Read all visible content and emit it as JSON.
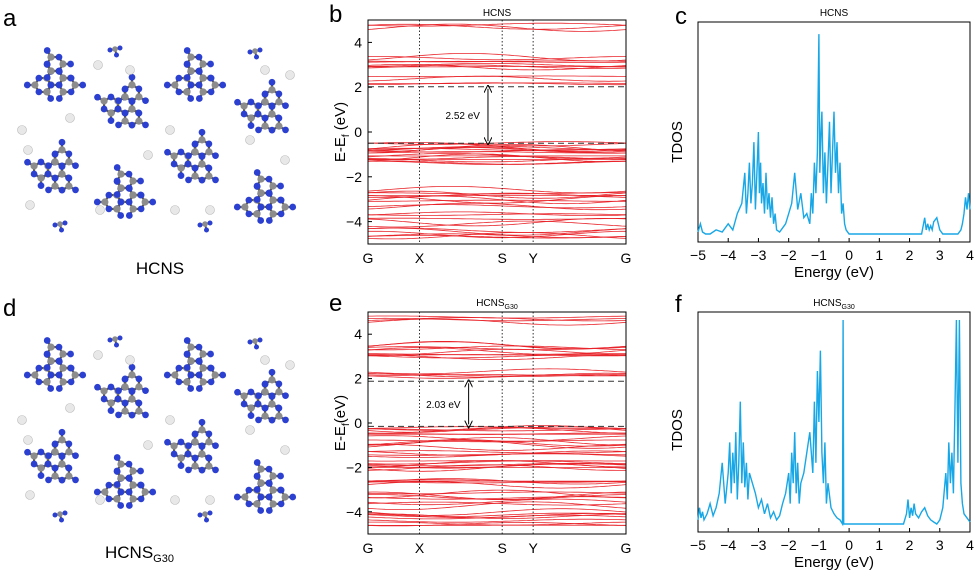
{
  "panels": {
    "a": {
      "letter": "a",
      "caption": "HCNS"
    },
    "b": {
      "letter": "b"
    },
    "c": {
      "letter": "c"
    },
    "d": {
      "letter": "d",
      "caption_main": "HCNS",
      "caption_sub": "G30"
    },
    "e": {
      "letter": "e"
    },
    "f": {
      "letter": "f"
    }
  },
  "colors": {
    "band": "#e8252b",
    "dos": "#18a7e6",
    "carbon": "#8c8c8c",
    "nitrogen": "#2b3fd1",
    "hydrogen": "#e8e8e8"
  },
  "chart_data": [
    {
      "id": "b",
      "type": "line",
      "title": "HCNS",
      "ylabel_main": "E-E",
      "ylabel_sub": "f",
      "ylabel_unit": " (eV)",
      "kpoints": [
        "G",
        "X",
        "S",
        "Y",
        "G"
      ],
      "kpoint_positions": [
        0,
        1,
        2.6,
        3.2,
        5.0
      ],
      "ylim": [
        -5,
        5
      ],
      "yticks": [
        -4,
        -2,
        0,
        2,
        4
      ],
      "vbm": -0.5,
      "cbm": 2.02,
      "gap_label": "2.52 eV",
      "band_groups": [
        {
          "center": -4.15,
          "spread": 0.6,
          "count": 10
        },
        {
          "center": -3.2,
          "spread": 0.55,
          "count": 8
        },
        {
          "center": -2.6,
          "spread": 0.3,
          "count": 3
        },
        {
          "center": -1.05,
          "spread": 0.45,
          "count": 14
        },
        {
          "center": -0.6,
          "spread": 0.12,
          "count": 4
        },
        {
          "center": 2.35,
          "spread": 0.25,
          "count": 4
        },
        {
          "center": 3.2,
          "spread": 0.35,
          "count": 8
        },
        {
          "center": 4.75,
          "spread": 0.15,
          "count": 3
        }
      ]
    },
    {
      "id": "c",
      "type": "line",
      "title": "HCNS",
      "xlabel": "Energy (eV)",
      "ylabel": "TDOS",
      "xlim": [
        -5,
        4
      ],
      "xticks": [
        -5,
        -4,
        -3,
        -2,
        -1,
        0,
        1,
        2,
        3,
        4
      ],
      "ylim": [
        0,
        1
      ],
      "x": [
        -5.0,
        -4.92,
        -4.85,
        -4.75,
        -4.6,
        -4.4,
        -4.2,
        -4.0,
        -3.85,
        -3.7,
        -3.55,
        -3.45,
        -3.4,
        -3.35,
        -3.3,
        -3.25,
        -3.2,
        -3.15,
        -3.1,
        -3.05,
        -3.0,
        -2.97,
        -2.93,
        -2.9,
        -2.85,
        -2.8,
        -2.75,
        -2.7,
        -2.65,
        -2.6,
        -2.55,
        -2.5,
        -2.45,
        -2.4,
        -2.3,
        -2.2,
        -2.1,
        -2.0,
        -1.9,
        -1.8,
        -1.7,
        -1.6,
        -1.5,
        -1.4,
        -1.3,
        -1.25,
        -1.2,
        -1.15,
        -1.1,
        -1.05,
        -1.0,
        -0.97,
        -0.93,
        -0.9,
        -0.85,
        -0.8,
        -0.75,
        -0.7,
        -0.65,
        -0.6,
        -0.55,
        -0.5,
        -0.45,
        -0.4,
        -0.35,
        -0.3,
        -0.25,
        -0.2,
        -0.15,
        -0.1,
        0.0,
        1.0,
        2.0,
        2.4,
        2.5,
        2.55,
        2.6,
        2.65,
        2.7,
        2.75,
        2.8,
        2.9,
        3.0,
        3.1,
        3.2,
        3.3,
        3.4,
        3.5,
        3.6,
        3.7,
        3.75,
        3.8,
        3.85,
        3.9,
        3.95,
        4.0
      ],
      "y": [
        0.01,
        0.05,
        0.01,
        0.0,
        0.0,
        0.02,
        0.01,
        0.05,
        0.02,
        0.1,
        0.15,
        0.3,
        0.1,
        0.2,
        0.35,
        0.15,
        0.25,
        0.45,
        0.12,
        0.3,
        0.5,
        0.2,
        0.35,
        0.15,
        0.25,
        0.1,
        0.3,
        0.12,
        0.2,
        0.08,
        0.18,
        0.05,
        0.1,
        0.02,
        0.01,
        0.03,
        0.05,
        0.1,
        0.15,
        0.3,
        0.12,
        0.2,
        0.08,
        0.1,
        0.05,
        0.2,
        0.1,
        0.35,
        0.2,
        0.4,
        0.98,
        0.3,
        0.5,
        0.6,
        0.2,
        0.4,
        0.15,
        0.35,
        0.55,
        0.2,
        0.4,
        0.6,
        0.3,
        0.45,
        0.2,
        0.35,
        0.1,
        0.15,
        0.05,
        0.02,
        0.0,
        0.0,
        0.0,
        0.0,
        0.08,
        0.02,
        0.05,
        0.02,
        0.04,
        0.02,
        0.06,
        0.08,
        0.02,
        0.0,
        0.0,
        0.0,
        0.0,
        0.0,
        0.0,
        0.02,
        0.05,
        0.1,
        0.18,
        0.12,
        0.2,
        0.12
      ]
    },
    {
      "id": "e",
      "type": "line",
      "title_main": "HCNS",
      "title_sub": "G30",
      "ylabel_main": "E-E",
      "ylabel_sub": "f",
      "ylabel_unit": "(eV)",
      "kpoints": [
        "G",
        "X",
        "S",
        "Y",
        "G"
      ],
      "kpoint_positions": [
        0,
        1,
        2.6,
        3.2,
        5.0
      ],
      "ylim": [
        -5,
        5
      ],
      "yticks": [
        -4,
        -2,
        0,
        2,
        4
      ],
      "vbm": -0.15,
      "cbm": 1.88,
      "gap_label": "2.03 eV",
      "band_groups": [
        {
          "center": -4.1,
          "spread": 0.6,
          "count": 12
        },
        {
          "center": -3.1,
          "spread": 0.5,
          "count": 10
        },
        {
          "center": -1.6,
          "spread": 0.45,
          "count": 12
        },
        {
          "center": -0.7,
          "spread": 0.4,
          "count": 10
        },
        {
          "center": -0.25,
          "spread": 0.08,
          "count": 3
        },
        {
          "center": 2.15,
          "spread": 0.2,
          "count": 5
        },
        {
          "center": 3.2,
          "spread": 0.35,
          "count": 10
        },
        {
          "center": 4.7,
          "spread": 0.15,
          "count": 4
        }
      ]
    },
    {
      "id": "f",
      "type": "line",
      "title_main": "HCNS",
      "title_sub": "G30",
      "xlabel": "Energy (eV)",
      "ylabel": "TDOS",
      "xlim": [
        -5,
        4
      ],
      "xticks": [
        -5,
        -4,
        -3,
        -2,
        -1,
        0,
        1,
        2,
        3,
        4
      ],
      "ylim": [
        0,
        1
      ],
      "x": [
        -5.0,
        -4.95,
        -4.9,
        -4.85,
        -4.8,
        -4.7,
        -4.6,
        -4.5,
        -4.4,
        -4.3,
        -4.2,
        -4.1,
        -4.0,
        -3.95,
        -3.9,
        -3.85,
        -3.8,
        -3.75,
        -3.7,
        -3.65,
        -3.6,
        -3.55,
        -3.5,
        -3.45,
        -3.4,
        -3.35,
        -3.3,
        -3.2,
        -3.1,
        -3.0,
        -2.9,
        -2.8,
        -2.7,
        -2.6,
        -2.5,
        -2.4,
        -2.3,
        -2.2,
        -2.1,
        -2.0,
        -1.95,
        -1.9,
        -1.85,
        -1.8,
        -1.75,
        -1.7,
        -1.65,
        -1.6,
        -1.5,
        -1.4,
        -1.3,
        -1.2,
        -1.15,
        -1.1,
        -1.05,
        -1.0,
        -0.95,
        -0.9,
        -0.85,
        -0.8,
        -0.75,
        -0.7,
        -0.6,
        -0.5,
        -0.4,
        -0.3,
        -0.22,
        -0.2,
        -0.18,
        -0.1,
        0.0,
        1.0,
        1.8,
        1.9,
        1.95,
        2.0,
        2.05,
        2.1,
        2.15,
        2.2,
        2.3,
        2.4,
        2.5,
        2.6,
        2.7,
        2.8,
        2.9,
        3.0,
        3.1,
        3.2,
        3.25,
        3.3,
        3.35,
        3.4,
        3.45,
        3.5,
        3.55,
        3.6,
        3.65,
        3.7,
        3.75,
        3.8,
        3.9,
        4.0
      ],
      "y": [
        0.02,
        0.08,
        0.03,
        0.06,
        0.02,
        0.05,
        0.1,
        0.04,
        0.08,
        0.15,
        0.3,
        0.1,
        0.25,
        0.4,
        0.15,
        0.35,
        0.2,
        0.45,
        0.12,
        0.3,
        0.6,
        0.2,
        0.4,
        0.18,
        0.3,
        0.12,
        0.25,
        0.2,
        0.15,
        0.08,
        0.12,
        0.05,
        0.1,
        0.03,
        0.06,
        0.02,
        0.04,
        0.1,
        0.15,
        0.25,
        0.1,
        0.35,
        0.2,
        0.45,
        0.15,
        0.3,
        0.1,
        0.2,
        0.25,
        0.35,
        0.45,
        0.25,
        0.6,
        0.3,
        0.75,
        0.5,
        0.85,
        0.35,
        0.2,
        0.4,
        0.1,
        0.2,
        0.08,
        0.05,
        0.03,
        0.02,
        0.0,
        1.0,
        0.0,
        0.0,
        0.0,
        0.0,
        0.0,
        0.05,
        0.12,
        0.03,
        0.08,
        0.04,
        0.1,
        0.05,
        0.03,
        0.06,
        0.08,
        0.04,
        0.02,
        0.01,
        0.0,
        0.02,
        0.08,
        0.25,
        0.12,
        0.4,
        0.2,
        0.35,
        0.15,
        0.55,
        1.0,
        0.3,
        1.0,
        0.2,
        0.1,
        0.05,
        0.03,
        0.01
      ]
    }
  ]
}
